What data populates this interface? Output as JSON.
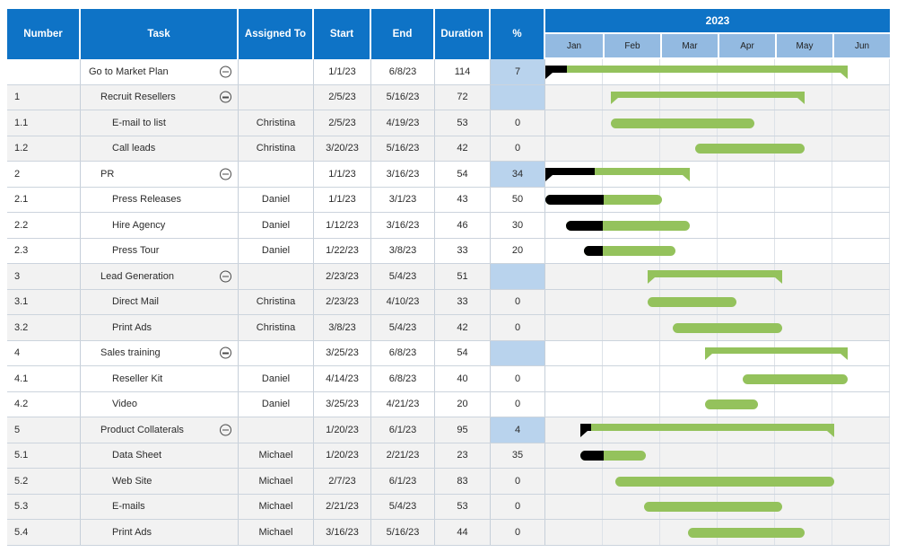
{
  "header": {
    "columns": [
      "Number",
      "Task",
      "Assigned To",
      "Start",
      "End",
      "Duration",
      "%"
    ],
    "year": "2023",
    "months": [
      "Jan",
      "Feb",
      "Mar",
      "Apr",
      "May",
      "Jun"
    ]
  },
  "colors": {
    "header_blue": "#0e73c6",
    "month_band_blue": "#93bae1",
    "bar_green": "#94c25c",
    "progress_black": "#000000",
    "percent_highlight_blue": "#b9d3ed",
    "row_shaded_gray": "#f2f2f2"
  },
  "rows": [
    {
      "number": "",
      "task": "Go to Market Plan",
      "level": 0,
      "summary": true,
      "assigned": "",
      "start": "1/1/23",
      "end": "6/8/23",
      "duration": "114",
      "pct": "7",
      "pct_highlight": true,
      "shaded": false
    },
    {
      "number": "1",
      "task": "Recruit Resellers",
      "level": 1,
      "summary": true,
      "assigned": "",
      "start": "2/5/23",
      "end": "5/16/23",
      "duration": "72",
      "pct": "",
      "pct_highlight": true,
      "shaded": true
    },
    {
      "number": "1.1",
      "task": "E-mail to list",
      "level": 2,
      "summary": false,
      "assigned": "Christina",
      "start": "2/5/23",
      "end": "4/19/23",
      "duration": "53",
      "pct": "0",
      "pct_highlight": false,
      "shaded": true
    },
    {
      "number": "1.2",
      "task": "Call leads",
      "level": 2,
      "summary": false,
      "assigned": "Christina",
      "start": "3/20/23",
      "end": "5/16/23",
      "duration": "42",
      "pct": "0",
      "pct_highlight": false,
      "shaded": true
    },
    {
      "number": "2",
      "task": "PR",
      "level": 1,
      "summary": true,
      "assigned": "",
      "start": "1/1/23",
      "end": "3/16/23",
      "duration": "54",
      "pct": "34",
      "pct_highlight": true,
      "shaded": false
    },
    {
      "number": "2.1",
      "task": "Press Releases",
      "level": 2,
      "summary": false,
      "assigned": "Daniel",
      "start": "1/1/23",
      "end": "3/1/23",
      "duration": "43",
      "pct": "50",
      "pct_highlight": false,
      "shaded": false
    },
    {
      "number": "2.2",
      "task": "Hire Agency",
      "level": 2,
      "summary": false,
      "assigned": "Daniel",
      "start": "1/12/23",
      "end": "3/16/23",
      "duration": "46",
      "pct": "30",
      "pct_highlight": false,
      "shaded": false
    },
    {
      "number": "2.3",
      "task": "Press Tour",
      "level": 2,
      "summary": false,
      "assigned": "Daniel",
      "start": "1/22/23",
      "end": "3/8/23",
      "duration": "33",
      "pct": "20",
      "pct_highlight": false,
      "shaded": false
    },
    {
      "number": "3",
      "task": "Lead Generation",
      "level": 1,
      "summary": true,
      "assigned": "",
      "start": "2/23/23",
      "end": "5/4/23",
      "duration": "51",
      "pct": "",
      "pct_highlight": true,
      "shaded": true
    },
    {
      "number": "3.1",
      "task": "Direct Mail",
      "level": 2,
      "summary": false,
      "assigned": "Christina",
      "start": "2/23/23",
      "end": "4/10/23",
      "duration": "33",
      "pct": "0",
      "pct_highlight": false,
      "shaded": true
    },
    {
      "number": "3.2",
      "task": "Print Ads",
      "level": 2,
      "summary": false,
      "assigned": "Christina",
      "start": "3/8/23",
      "end": "5/4/23",
      "duration": "42",
      "pct": "0",
      "pct_highlight": false,
      "shaded": true
    },
    {
      "number": "4",
      "task": "Sales training",
      "level": 1,
      "summary": true,
      "assigned": "",
      "start": "3/25/23",
      "end": "6/8/23",
      "duration": "54",
      "pct": "",
      "pct_highlight": true,
      "shaded": false
    },
    {
      "number": "4.1",
      "task": "Reseller Kit",
      "level": 2,
      "summary": false,
      "assigned": "Daniel",
      "start": "4/14/23",
      "end": "6/8/23",
      "duration": "40",
      "pct": "0",
      "pct_highlight": false,
      "shaded": false
    },
    {
      "number": "4.2",
      "task": "Video",
      "level": 2,
      "summary": false,
      "assigned": "Daniel",
      "start": "3/25/23",
      "end": "4/21/23",
      "duration": "20",
      "pct": "0",
      "pct_highlight": false,
      "shaded": false
    },
    {
      "number": "5",
      "task": "Product Collaterals",
      "level": 1,
      "summary": true,
      "assigned": "",
      "start": "1/20/23",
      "end": "6/1/23",
      "duration": "95",
      "pct": "4",
      "pct_highlight": true,
      "shaded": true
    },
    {
      "number": "5.1",
      "task": "Data Sheet",
      "level": 2,
      "summary": false,
      "assigned": "Michael",
      "start": "1/20/23",
      "end": "2/21/23",
      "duration": "23",
      "pct": "35",
      "pct_highlight": false,
      "shaded": true
    },
    {
      "number": "5.2",
      "task": "Web Site",
      "level": 2,
      "summary": false,
      "assigned": "Michael",
      "start": "2/7/23",
      "end": "6/1/23",
      "duration": "83",
      "pct": "0",
      "pct_highlight": false,
      "shaded": true
    },
    {
      "number": "5.3",
      "task": "E-mails",
      "level": 2,
      "summary": false,
      "assigned": "Michael",
      "start": "2/21/23",
      "end": "5/4/23",
      "duration": "53",
      "pct": "0",
      "pct_highlight": false,
      "shaded": true
    },
    {
      "number": "5.4",
      "task": "Print Ads",
      "level": 2,
      "summary": false,
      "assigned": "Michael",
      "start": "3/16/23",
      "end": "5/16/23",
      "duration": "44",
      "pct": "0",
      "pct_highlight": false,
      "shaded": true
    }
  ]
}
